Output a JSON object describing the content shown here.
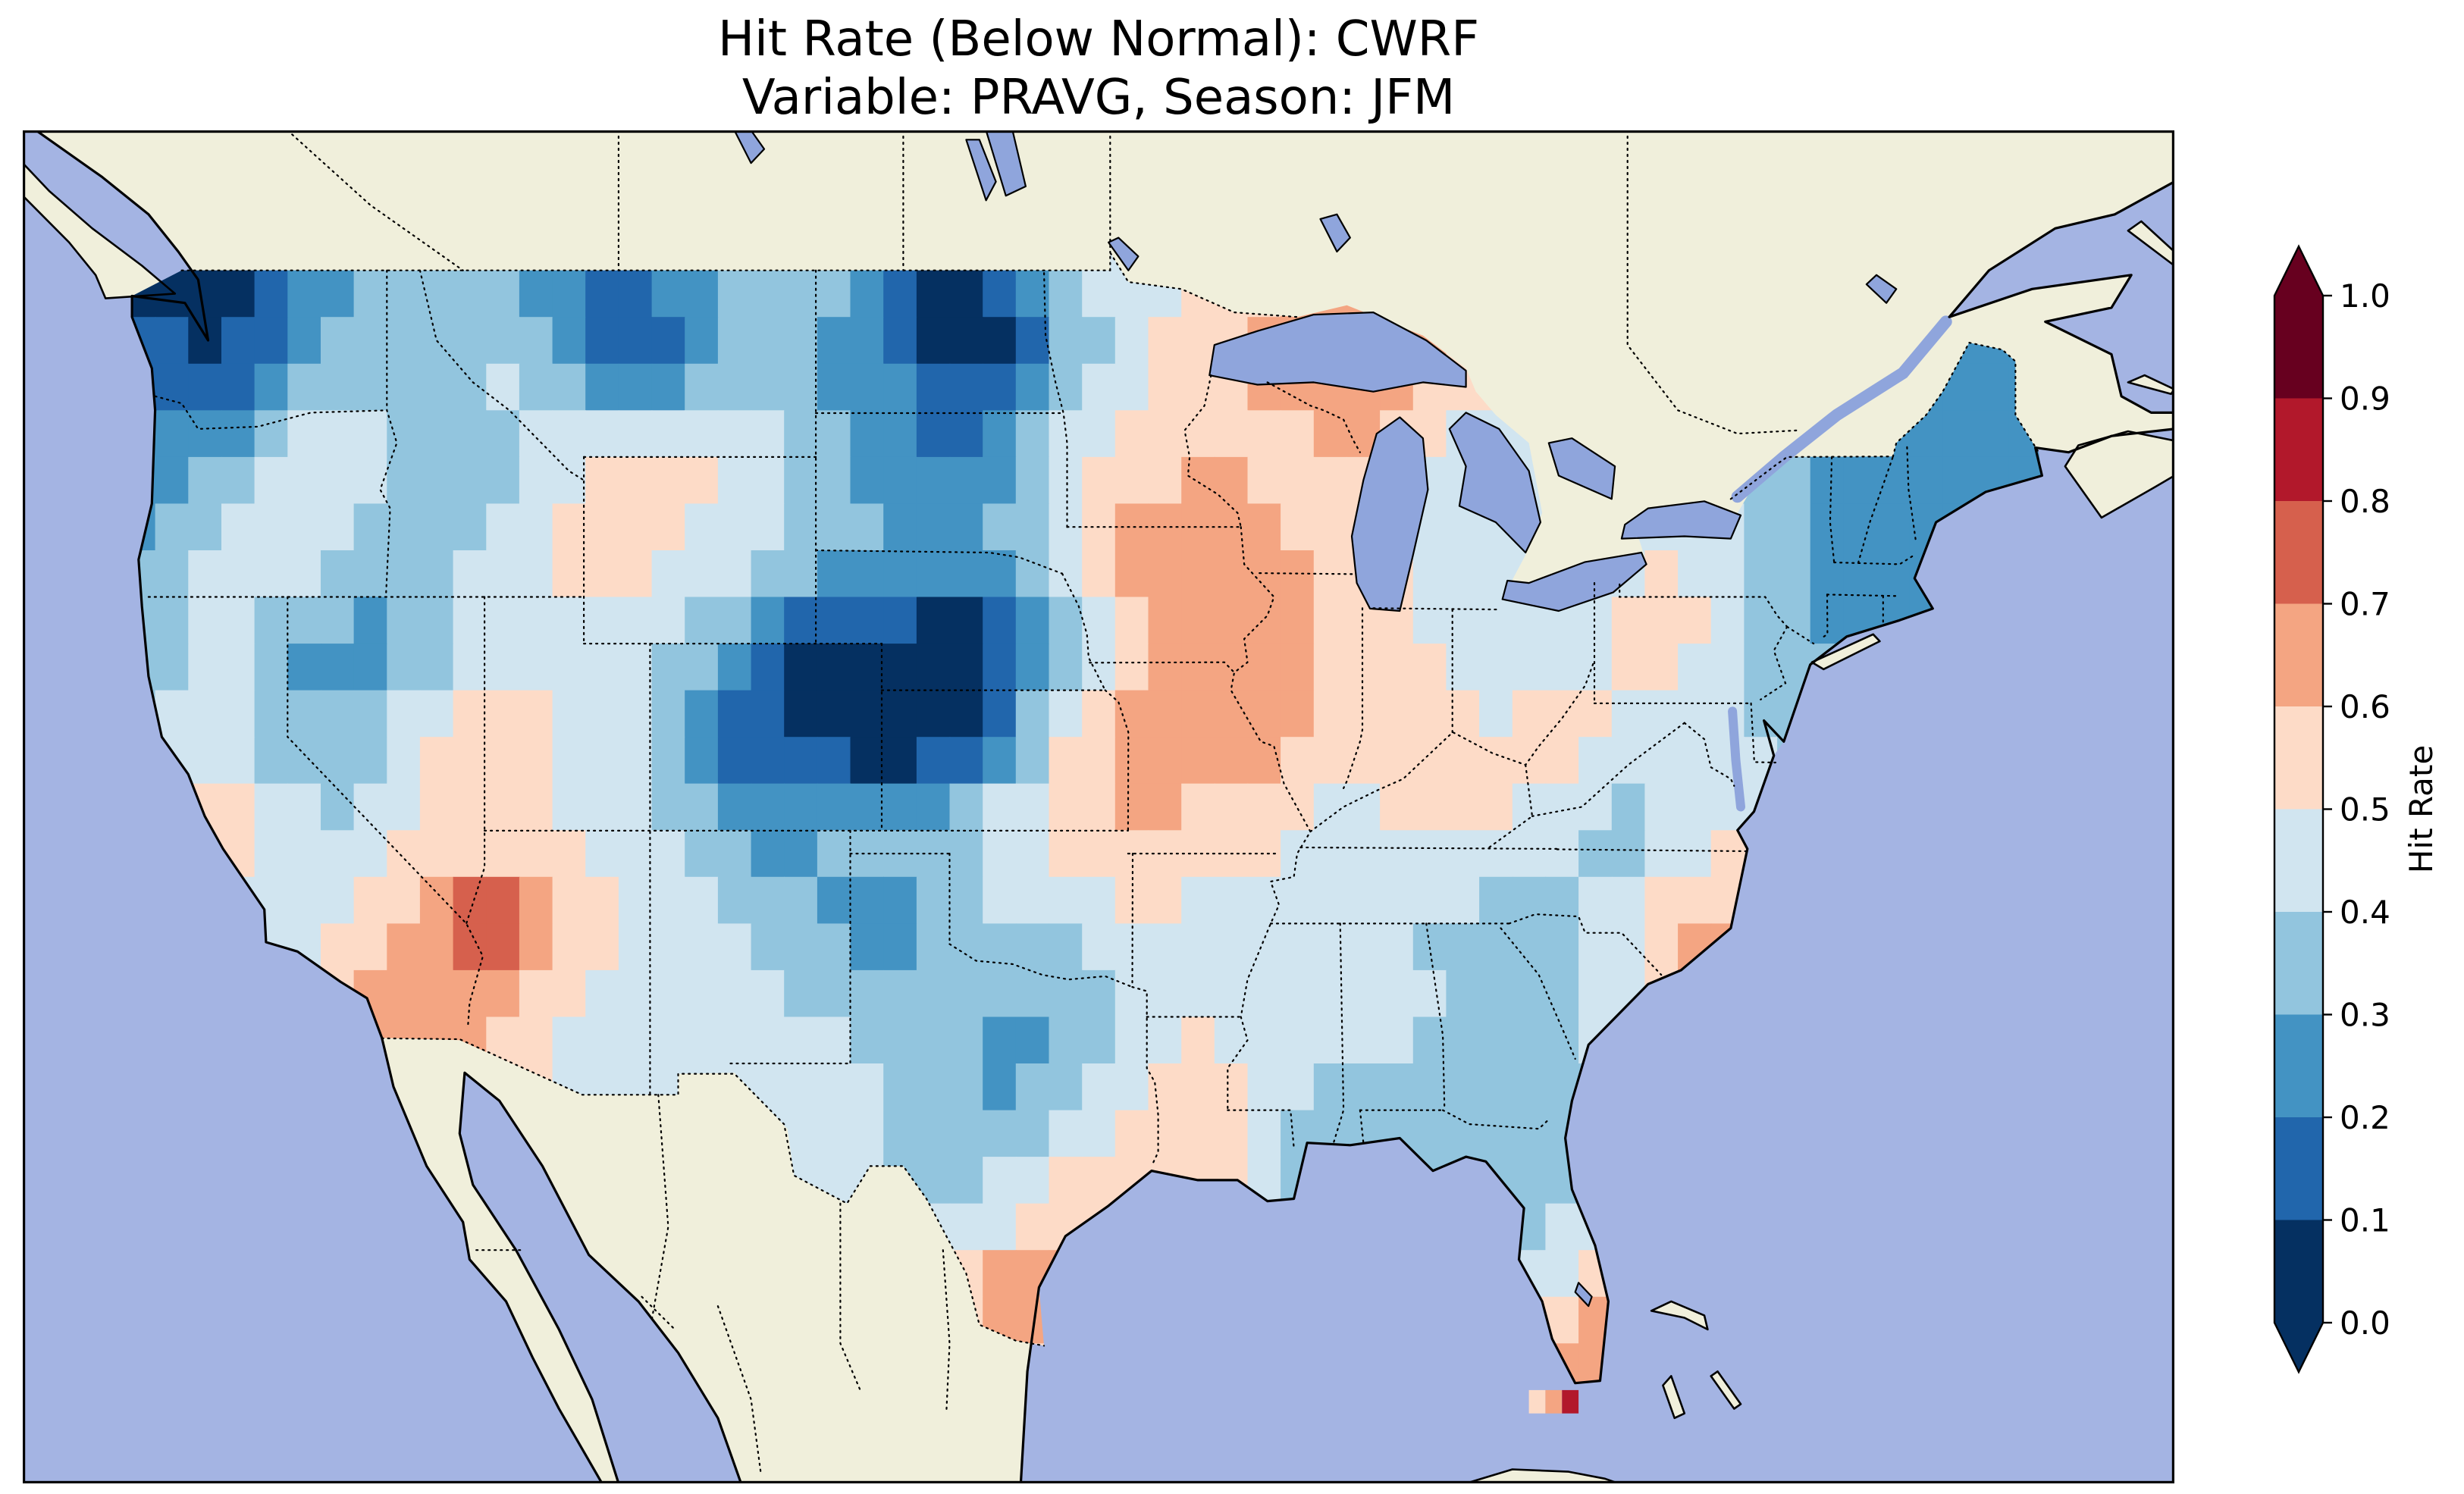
{
  "title": {
    "line1": "Hit Rate (Below Normal): CWRF",
    "line2": "Variable: PRAVG, Season: JFM"
  },
  "chart_data": {
    "type": "heatmap",
    "title": "Hit Rate (Below Normal): CWRF",
    "subtitle": "Variable: PRAVG, Season: JFM",
    "region": "Contiguous United States map with dotted state/province borders, beige land, periwinkle ocean",
    "colorbar": {
      "label": "Hit Rate",
      "range": [
        0.0,
        1.0
      ],
      "ticks": [
        "1.0",
        "0.9",
        "0.8",
        "0.7",
        "0.6",
        "0.5",
        "0.4",
        "0.3",
        "0.2",
        "0.1",
        "0.0"
      ],
      "bin_colors_low_to_high": [
        "#053061",
        "#2166ac",
        "#4393c3",
        "#92c5de",
        "#d1e5f0",
        "#fddbc7",
        "#f4a582",
        "#d6604d",
        "#b2182b",
        "#67001f"
      ],
      "under_color": "#053061",
      "over_color": "#67001f"
    },
    "map_colors": {
      "ocean": "#a4b4e3",
      "land": "#f0efdb",
      "lakes": "#8fa5dc",
      "coastline": "#000000",
      "borders": "#000000"
    },
    "grid": {
      "lon_min": -125,
      "lat_max": 50,
      "cell_deg": 2,
      "ncols": 30,
      "nrows": 13,
      "values": [
        [
          0.05,
          0.05,
          0.15,
          0.3,
          0.35,
          0.3,
          0.2,
          0.1,
          0.25,
          0.4,
          0.35,
          0.2,
          0.05,
          0.15,
          0.4,
          0.45,
          0.5,
          0.6,
          0.6,
          0.65,
          null,
          null,
          null,
          null,
          null,
          null,
          null,
          null,
          null,
          null
        ],
        [
          0.15,
          0.1,
          0.25,
          0.35,
          0.3,
          0.45,
          0.35,
          0.1,
          0.2,
          0.35,
          0.3,
          0.25,
          0.05,
          0.1,
          0.35,
          0.5,
          0.55,
          0.65,
          0.7,
          0.65,
          null,
          null,
          null,
          null,
          null,
          null,
          null,
          null,
          null,
          null
        ],
        [
          0.25,
          0.3,
          0.5,
          0.45,
          0.35,
          0.3,
          0.45,
          0.5,
          0.55,
          0.45,
          0.35,
          0.25,
          0.2,
          0.3,
          0.5,
          0.55,
          0.6,
          0.55,
          0.6,
          0.5,
          0.45,
          null,
          null,
          null,
          null,
          0.3,
          0.25,
          0.2,
          0.25,
          null
        ],
        [
          0.3,
          0.45,
          0.5,
          0.4,
          0.35,
          0.45,
          0.5,
          0.55,
          0.5,
          0.45,
          0.35,
          0.3,
          0.25,
          0.35,
          0.55,
          0.65,
          0.7,
          0.6,
          0.55,
          0.5,
          0.45,
          0.4,
          0.45,
          0.5,
          0.4,
          0.3,
          0.25,
          0.2,
          0.3,
          null
        ],
        [
          0.35,
          0.45,
          0.3,
          0.25,
          0.3,
          0.45,
          0.5,
          0.45,
          0.4,
          0.2,
          0.05,
          0.05,
          0.0,
          0.1,
          0.4,
          0.6,
          0.7,
          0.7,
          0.55,
          0.5,
          0.45,
          0.45,
          0.5,
          0.55,
          0.4,
          0.3,
          0.25,
          0.3,
          null,
          null
        ],
        [
          0.4,
          0.5,
          0.3,
          0.35,
          0.5,
          0.55,
          0.5,
          0.45,
          0.3,
          0.1,
          0.05,
          0.0,
          0.05,
          0.3,
          0.55,
          0.7,
          0.7,
          0.65,
          0.5,
          0.55,
          0.5,
          0.55,
          0.5,
          0.45,
          0.4,
          0.35,
          null,
          null,
          null,
          null
        ],
        [
          0.45,
          0.55,
          0.45,
          0.4,
          0.5,
          0.55,
          0.5,
          0.45,
          0.4,
          0.25,
          0.3,
          0.35,
          0.35,
          0.5,
          0.55,
          0.6,
          0.55,
          0.5,
          0.45,
          0.5,
          0.55,
          0.45,
          0.35,
          0.4,
          0.5,
          null,
          null,
          null,
          null,
          null
        ],
        [
          0.4,
          0.5,
          0.45,
          0.55,
          0.65,
          0.8,
          0.65,
          0.5,
          0.45,
          0.4,
          0.3,
          0.25,
          0.35,
          0.45,
          0.4,
          0.5,
          0.45,
          0.5,
          0.45,
          0.4,
          0.35,
          0.3,
          0.45,
          0.65,
          null,
          null,
          null,
          null,
          null,
          null
        ],
        [
          null,
          0.45,
          0.5,
          0.6,
          0.7,
          0.6,
          0.5,
          0.45,
          0.4,
          0.45,
          0.4,
          0.35,
          0.3,
          0.25,
          0.35,
          0.45,
          0.5,
          0.45,
          0.5,
          0.45,
          0.35,
          0.4,
          null,
          null,
          null,
          null,
          null,
          null,
          null,
          null
        ],
        [
          null,
          null,
          null,
          null,
          null,
          null,
          null,
          null,
          null,
          0.4,
          0.45,
          0.4,
          0.35,
          0.3,
          0.45,
          0.5,
          0.55,
          0.4,
          0.35,
          0.3,
          0.3,
          0.35,
          null,
          null,
          null,
          null,
          null,
          null,
          null,
          null
        ],
        [
          null,
          null,
          null,
          null,
          null,
          null,
          null,
          null,
          null,
          null,
          null,
          null,
          0.4,
          0.45,
          0.6,
          null,
          null,
          null,
          null,
          null,
          null,
          0.35,
          0.4,
          null,
          null,
          null,
          null,
          null,
          null,
          null
        ],
        [
          null,
          null,
          null,
          null,
          null,
          null,
          null,
          null,
          null,
          null,
          null,
          null,
          null,
          0.7,
          0.6,
          null,
          null,
          null,
          null,
          null,
          null,
          0.5,
          0.65,
          null,
          null,
          null,
          null,
          null,
          null,
          null
        ],
        [
          null,
          null,
          null,
          null,
          null,
          null,
          null,
          null,
          null,
          null,
          null,
          null,
          null,
          0.5,
          null,
          null,
          null,
          null,
          null,
          null,
          null,
          0.6,
          0.7,
          null,
          null,
          null,
          null,
          null,
          null,
          null
        ]
      ]
    },
    "extra_cells": [
      {
        "lon": -82.25,
        "lat": 24.75,
        "value": 0.52
      },
      {
        "lon": -81.75,
        "lat": 24.75,
        "value": 0.65
      },
      {
        "lon": -81.25,
        "lat": 24.75,
        "value": 0.82
      }
    ]
  }
}
